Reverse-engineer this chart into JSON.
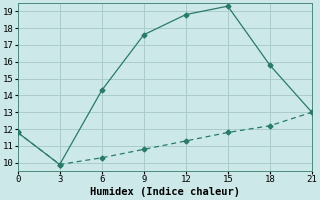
{
  "xlabel": "Humidex (Indice chaleur)",
  "line1_x": [
    0,
    3,
    6,
    9,
    12,
    15,
    18,
    21
  ],
  "line1_y": [
    11.8,
    9.9,
    14.3,
    17.6,
    18.8,
    19.3,
    15.8,
    13.0
  ],
  "line2_x": [
    0,
    3,
    6,
    9,
    12,
    15,
    18,
    21
  ],
  "line2_y": [
    11.8,
    9.9,
    10.3,
    10.8,
    11.3,
    11.8,
    12.2,
    13.0
  ],
  "line_color": "#2a7a6a",
  "bg_color": "#cce8e8",
  "grid_color": "#aacccc",
  "xlim": [
    0,
    21
  ],
  "ylim": [
    9.5,
    19.5
  ],
  "xticks": [
    0,
    3,
    6,
    9,
    12,
    15,
    18,
    21
  ],
  "yticks": [
    10,
    11,
    12,
    13,
    14,
    15,
    16,
    17,
    18,
    19
  ],
  "tick_fontsize": 6.5,
  "xlabel_fontsize": 7.5,
  "marker": "D",
  "marker_size": 2.5,
  "linewidth": 0.9
}
